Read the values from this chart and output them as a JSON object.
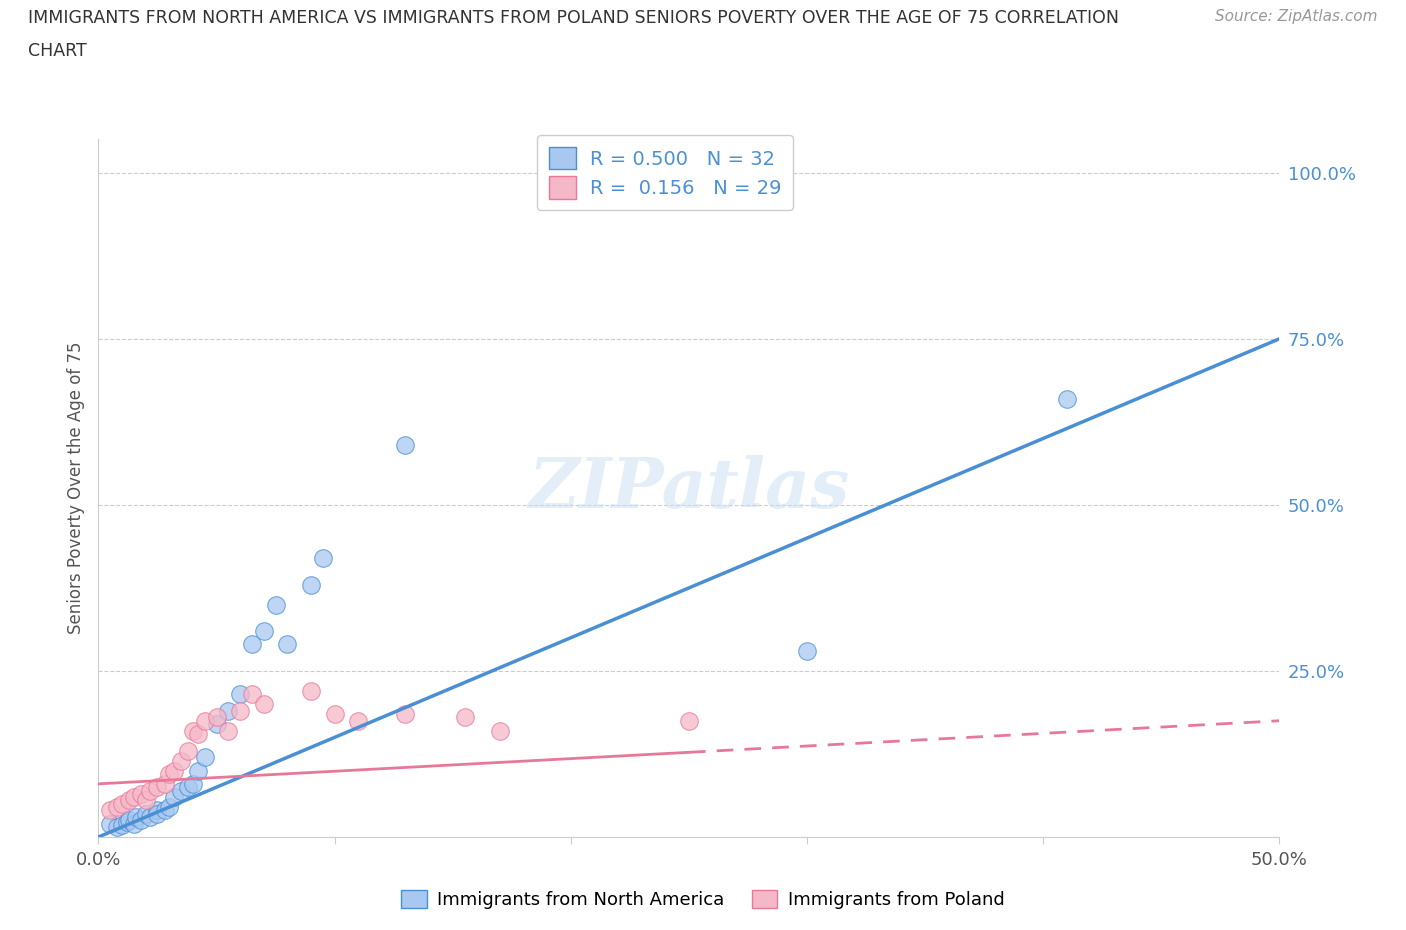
{
  "title_line1": "IMMIGRANTS FROM NORTH AMERICA VS IMMIGRANTS FROM POLAND SENIORS POVERTY OVER THE AGE OF 75 CORRELATION",
  "title_line2": "CHART",
  "source": "Source: ZipAtlas.com",
  "ylabel": "Seniors Poverty Over the Age of 75",
  "xlim": [
    0.0,
    0.5
  ],
  "ylim": [
    0.0,
    1.05
  ],
  "r_north_america": 0.5,
  "n_north_america": 32,
  "r_poland": 0.156,
  "n_poland": 29,
  "color_north_america": "#a8c8f0",
  "color_poland": "#f5b8c8",
  "line_color_north_america": "#4a8fd4",
  "line_color_poland": "#e87898",
  "watermark": "ZIPatlas",
  "legend_labels": [
    "Immigrants from North America",
    "Immigrants from Poland"
  ],
  "north_america_x": [
    0.005,
    0.008,
    0.01,
    0.012,
    0.013,
    0.015,
    0.016,
    0.018,
    0.02,
    0.022,
    0.025,
    0.025,
    0.028,
    0.03,
    0.032,
    0.035,
    0.038,
    0.04,
    0.042,
    0.045,
    0.05,
    0.055,
    0.06,
    0.065,
    0.07,
    0.075,
    0.08,
    0.09,
    0.095,
    0.13,
    0.3,
    0.41
  ],
  "north_america_y": [
    0.02,
    0.015,
    0.018,
    0.022,
    0.025,
    0.02,
    0.03,
    0.025,
    0.035,
    0.03,
    0.04,
    0.035,
    0.04,
    0.045,
    0.06,
    0.07,
    0.075,
    0.08,
    0.1,
    0.12,
    0.17,
    0.19,
    0.215,
    0.29,
    0.31,
    0.35,
    0.29,
    0.38,
    0.42,
    0.59,
    0.28,
    0.66
  ],
  "poland_x": [
    0.005,
    0.008,
    0.01,
    0.013,
    0.015,
    0.018,
    0.02,
    0.022,
    0.025,
    0.028,
    0.03,
    0.032,
    0.035,
    0.038,
    0.04,
    0.042,
    0.045,
    0.05,
    0.055,
    0.06,
    0.065,
    0.07,
    0.09,
    0.1,
    0.11,
    0.13,
    0.155,
    0.17,
    0.25
  ],
  "poland_y": [
    0.04,
    0.045,
    0.05,
    0.055,
    0.06,
    0.065,
    0.055,
    0.07,
    0.075,
    0.08,
    0.095,
    0.1,
    0.115,
    0.13,
    0.16,
    0.155,
    0.175,
    0.18,
    0.16,
    0.19,
    0.215,
    0.2,
    0.22,
    0.185,
    0.175,
    0.185,
    0.18,
    0.16,
    0.175
  ],
  "na_line_x": [
    0.0,
    0.5
  ],
  "na_line_y": [
    0.0,
    0.75
  ],
  "pl_line_x": [
    0.0,
    0.5
  ],
  "pl_line_y": [
    0.08,
    0.175
  ]
}
